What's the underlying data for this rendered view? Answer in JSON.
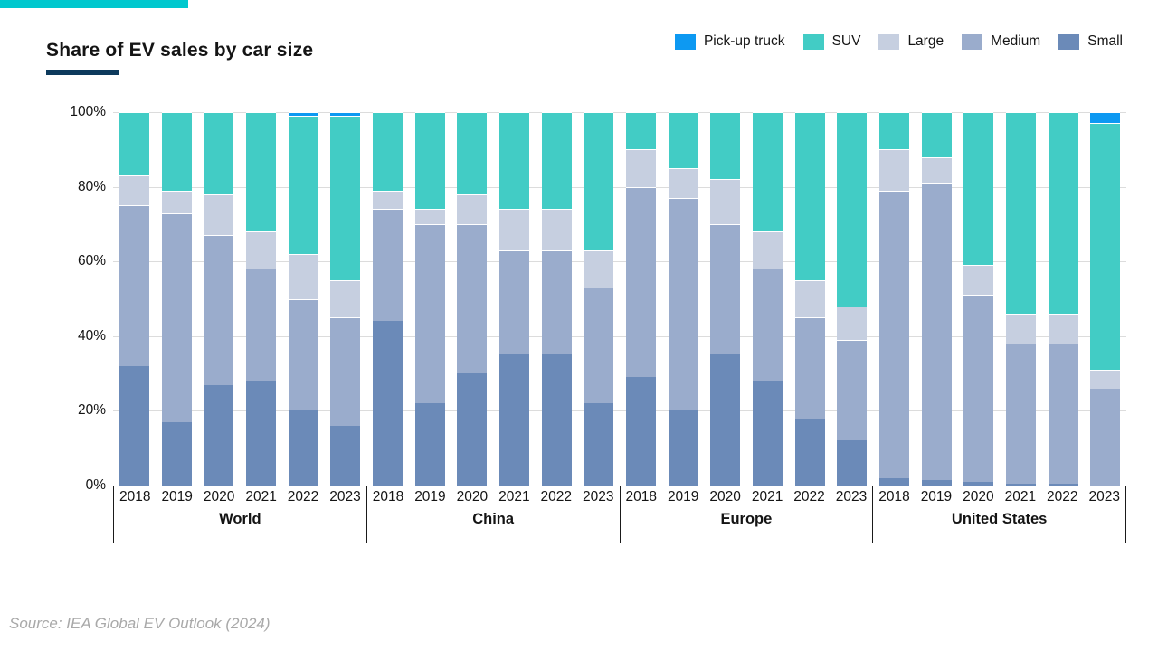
{
  "header": {
    "title": "Share of EV sales by car size",
    "accent_bar_color": "#00C8CE",
    "underline_color": "#0D3A5C"
  },
  "legend": {
    "items": [
      {
        "label": "Pick-up truck",
        "color": "#0D99F2"
      },
      {
        "label": "SUV",
        "color": "#42CCC5"
      },
      {
        "label": "Large",
        "color": "#C6CFE0"
      },
      {
        "label": "Medium",
        "color": "#9AACCC"
      },
      {
        "label": "Small",
        "color": "#6B8AB8"
      }
    ]
  },
  "footer": {
    "source": "Source: IEA Global EV Outlook (2024)"
  },
  "chart_data": {
    "type": "bar",
    "stacked": true,
    "unit": "%",
    "ylim": [
      0,
      100
    ],
    "yticks": [
      0,
      20,
      40,
      60,
      80,
      100
    ],
    "ytick_labels": [
      "0%",
      "20%",
      "40%",
      "60%",
      "80%",
      "100%"
    ],
    "grid": true,
    "legend_position": "top-right",
    "series_order_bottom_to_top": [
      "Small",
      "Medium",
      "Large",
      "SUV",
      "Pick-up truck"
    ],
    "colors": {
      "Pick-up truck": "#0D99F2",
      "SUV": "#42CCC5",
      "Large": "#C6CFE0",
      "Medium": "#9AACCC",
      "Small": "#6B8AB8"
    },
    "years": [
      "2018",
      "2019",
      "2020",
      "2021",
      "2022",
      "2023"
    ],
    "groups": [
      {
        "label": "World",
        "values": {
          "Small": [
            32,
            17,
            27,
            28,
            20,
            16
          ],
          "Medium": [
            43,
            56,
            40,
            30,
            30,
            29
          ],
          "Large": [
            8,
            6,
            11,
            10,
            12,
            10
          ],
          "SUV": [
            17,
            21,
            22,
            32,
            37,
            44
          ],
          "Pick-up truck": [
            0,
            0,
            0,
            0,
            1,
            1
          ]
        }
      },
      {
        "label": "China",
        "values": {
          "Small": [
            44,
            22,
            30,
            35,
            35,
            22
          ],
          "Medium": [
            30,
            48,
            40,
            28,
            28,
            31
          ],
          "Large": [
            5,
            4,
            8,
            11,
            11,
            10
          ],
          "SUV": [
            21,
            26,
            22,
            26,
            26,
            37
          ],
          "Pick-up truck": [
            0,
            0,
            0,
            0,
            0,
            0
          ]
        }
      },
      {
        "label": "Europe",
        "values": {
          "Small": [
            29,
            20,
            35,
            28,
            18,
            12
          ],
          "Medium": [
            51,
            57,
            35,
            30,
            27,
            27
          ],
          "Large": [
            10,
            8,
            12,
            10,
            10,
            9
          ],
          "SUV": [
            10,
            15,
            18,
            32,
            45,
            52
          ],
          "Pick-up truck": [
            0,
            0,
            0,
            0,
            0,
            0
          ]
        }
      },
      {
        "label": "United States",
        "values": {
          "Small": [
            2,
            1.5,
            1,
            0.5,
            0.5,
            0
          ],
          "Medium": [
            77,
            79.5,
            50,
            37.5,
            37.5,
            26
          ],
          "Large": [
            11,
            7,
            8,
            8,
            8,
            5
          ],
          "SUV": [
            10,
            12,
            41,
            54,
            54,
            66
          ],
          "Pick-up truck": [
            0,
            0,
            0,
            0,
            0,
            3
          ]
        }
      }
    ]
  }
}
